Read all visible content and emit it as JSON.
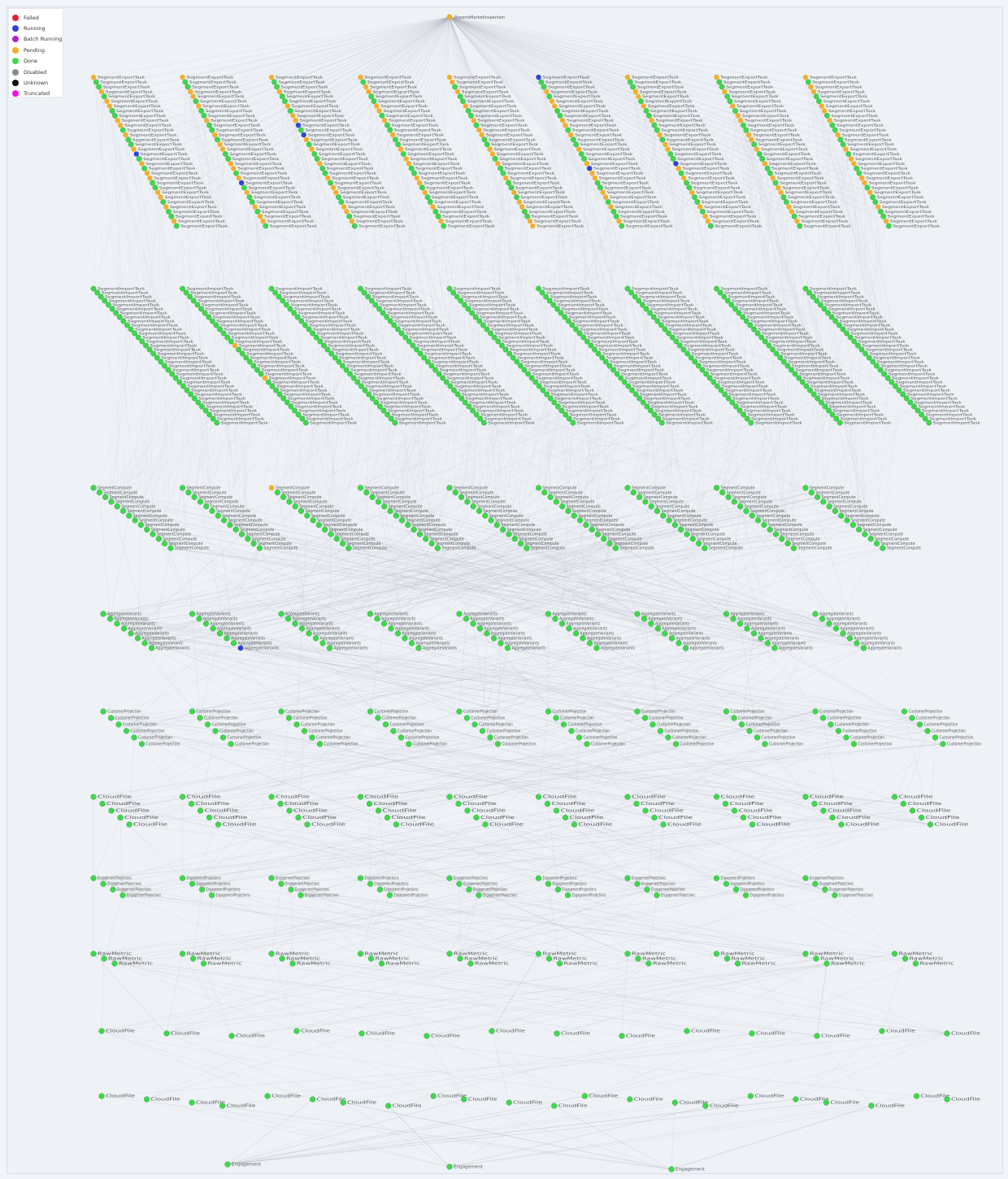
{
  "header": {
    "caption": ""
  },
  "legend": {
    "items": [
      {
        "label": "Failed",
        "color": "#e8212e",
        "icon": "circle-icon"
      },
      {
        "label": "Running",
        "color": "#2f43d8",
        "icon": "circle-icon"
      },
      {
        "label": "Batch Running",
        "color": "#b81fc4",
        "icon": "circle-icon"
      },
      {
        "label": "Pending",
        "color": "#f0b02c",
        "icon": "circle-icon"
      },
      {
        "label": "Done",
        "color": "#3fd84c",
        "icon": "circle-icon"
      },
      {
        "label": "Disabled",
        "color": "#8a8a8a",
        "icon": "circle-icon"
      },
      {
        "label": "Unknown",
        "color": "#111111",
        "icon": "circle-icon"
      },
      {
        "label": "Truncated",
        "color": "#f010f0",
        "icon": "circle-icon"
      }
    ]
  },
  "graph": {
    "root_label": "ReportsMarketInspection",
    "root_status": "Pending",
    "edge_color": "#9aa0aa",
    "tiers": [
      {
        "kind": "diagonal",
        "group_label": "SegmentExportTask",
        "groups": 9,
        "nodes_per_group": 32,
        "pending_every": 3,
        "running": [
          [
            0,
            16
          ],
          [
            1,
            22
          ],
          [
            2,
            10
          ],
          [
            2,
            12
          ],
          [
            5,
            0
          ],
          [
            5,
            19
          ],
          [
            6,
            18
          ]
        ]
      },
      {
        "kind": "diagonal",
        "group_label": "SegmentImportTask",
        "groups": 9,
        "nodes_per_group": 34,
        "pending_every": 0,
        "running": [],
        "pending_extra": [
          [
            1,
            14
          ],
          [
            1,
            22
          ]
        ]
      },
      {
        "kind": "diagonal_short",
        "group_label": "SegmentCompute",
        "groups": 9,
        "nodes_per_group": 14,
        "pending_every": 0,
        "running": [],
        "pending_extra": [
          [
            2,
            0
          ]
        ]
      },
      {
        "kind": "short_row",
        "group_label": "AggregateVariants",
        "groups": 9,
        "nodes_per_group": 8,
        "pending_every": 0,
        "running": [
          [
            1,
            7
          ]
        ]
      },
      {
        "kind": "short_row",
        "group_label": "CustomerProjection",
        "groups": 10,
        "nodes_per_group": 6,
        "pending_every": 0,
        "running": []
      },
      {
        "kind": "short_row",
        "group_label": "CloudFile",
        "groups": 10,
        "nodes_per_group": 5,
        "pending_every": 0,
        "running": []
      },
      {
        "kind": "short_row",
        "group_label": "EngagementProjections",
        "groups": 9,
        "nodes_per_group": 4,
        "pending_every": 0,
        "running": []
      },
      {
        "kind": "short_row",
        "group_label": "RawMetric",
        "groups": 10,
        "nodes_per_group": 3,
        "pending_every": 0,
        "running": []
      },
      {
        "kind": "row",
        "group_label": "CloudFile",
        "groups": 14,
        "nodes_per_group": 1,
        "pending_every": 0,
        "running": []
      },
      {
        "kind": "row",
        "group_label": "CloudFile",
        "groups": 22,
        "nodes_per_group": 1,
        "pending_every": 0,
        "running": []
      },
      {
        "kind": "row",
        "group_label": "Engagement",
        "groups": 3,
        "nodes_per_group": 1,
        "pending_every": 0,
        "running": []
      }
    ]
  }
}
